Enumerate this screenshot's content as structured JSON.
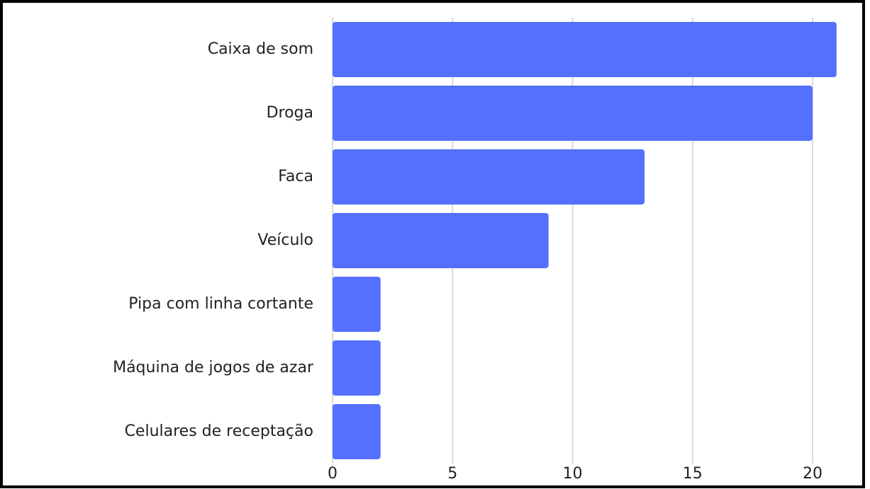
{
  "chart_data": {
    "type": "barh",
    "categories": [
      "Caixa de som",
      "Droga",
      "Faca",
      "Veículo",
      "Pipa com linha cortante",
      "Máquina de jogos de azar",
      "Celulares de receptação"
    ],
    "values": [
      21,
      20,
      13,
      9,
      2,
      2,
      2
    ],
    "color": "#5470fe",
    "xlim": [
      0,
      22
    ],
    "xticks": [
      0,
      5,
      10,
      15,
      20
    ],
    "grid": true
  }
}
